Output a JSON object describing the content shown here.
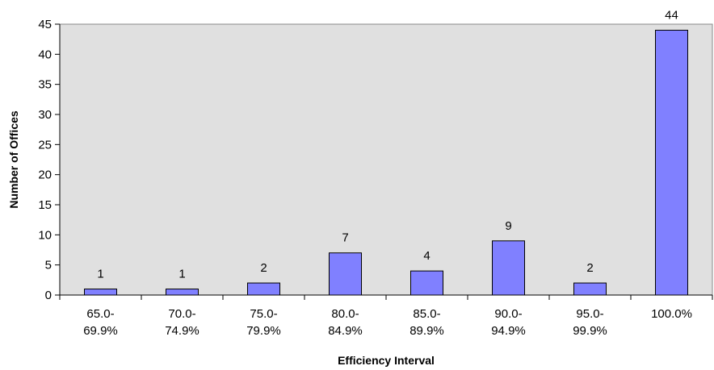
{
  "chart_data": {
    "type": "bar",
    "title": "",
    "xlabel": "Efficiency Interval",
    "ylabel": "Number of Offices",
    "categories": [
      [
        "65.0-",
        "69.9%"
      ],
      [
        "70.0-",
        "74.9%"
      ],
      [
        "75.0-",
        "79.9%"
      ],
      [
        "80.0-",
        "84.9%"
      ],
      [
        "85.0-",
        "89.9%"
      ],
      [
        "90.0-",
        "94.9%"
      ],
      [
        "95.0-",
        "99.9%"
      ],
      [
        "100.0%"
      ]
    ],
    "values": [
      1,
      1,
      2,
      7,
      4,
      9,
      2,
      44
    ],
    "ylim": [
      0,
      45
    ],
    "yticks": [
      0,
      5,
      10,
      15,
      20,
      25,
      30,
      35,
      40,
      45
    ],
    "grid": false,
    "legend": "none",
    "colors": {
      "bar_fill": "#8080ff",
      "bar_stroke": "#000000",
      "plot_background": "#e0e0e0",
      "axis": "#000000"
    }
  }
}
